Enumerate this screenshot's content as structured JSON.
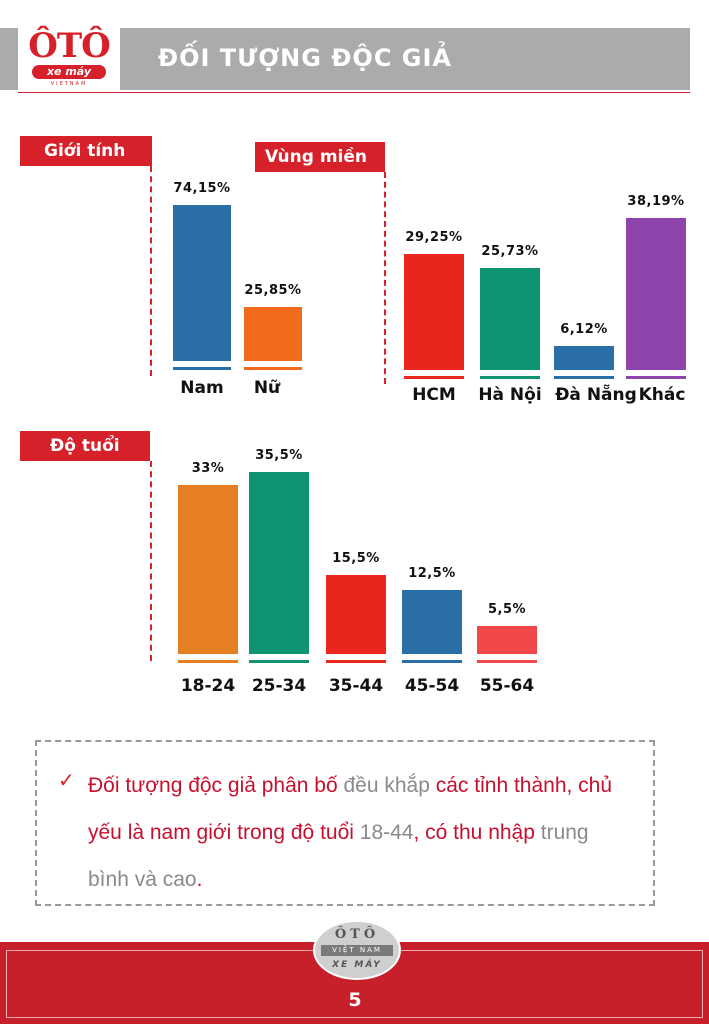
{
  "header": {
    "logo": {
      "brand": "ÔTÔ",
      "sub": "xe máy",
      "country": "VIETNAM"
    },
    "title": "ĐỐI TƯỢNG ĐỘC GIẢ"
  },
  "sections": {
    "gender": "Giới tính",
    "region": "Vùng miền",
    "age": "Độ tuổi"
  },
  "chart_data": [
    {
      "type": "bar",
      "title": "Giới tính",
      "categories": [
        "Nam",
        "Nữ"
      ],
      "values": [
        74.15,
        25.85
      ],
      "value_labels": [
        "74,15%",
        "25,85%"
      ],
      "colors": [
        "#2a6fa8",
        "#f26b1d"
      ]
    },
    {
      "type": "bar",
      "title": "Vùng miền",
      "categories": [
        "HCM",
        "Hà Nội",
        "Đà Nẵng",
        "Khác"
      ],
      "values": [
        29.25,
        25.73,
        6.12,
        38.19
      ],
      "value_labels": [
        "29,25%",
        "25,73%",
        "6,12%",
        "38,19%"
      ],
      "colors": [
        "#e8261c",
        "#0f9473",
        "#2a6fa8",
        "#8e44ad"
      ]
    },
    {
      "type": "bar",
      "title": "Độ tuổi",
      "categories": [
        "18-24",
        "25-34",
        "35-44",
        "45-54",
        "55-64"
      ],
      "values": [
        33,
        35.5,
        15.5,
        12.5,
        5.5
      ],
      "value_labels": [
        "33%",
        "35,5%",
        "15,5%",
        "12,5%",
        "5,5%"
      ],
      "colors": [
        "#e67e22",
        "#0f9473",
        "#e8261c",
        "#2a6fa8",
        "#f04848"
      ]
    }
  ],
  "note": {
    "check": "✓",
    "parts": [
      {
        "text": "Đối tượng độc giả phân bố ",
        "style": "red"
      },
      {
        "text": "đều khắp",
        "style": "grey"
      },
      {
        "text": " các tỉnh thành, chủ yếu là nam giới trong độ tuổi ",
        "style": "red"
      },
      {
        "text": "18-44",
        "style": "grey"
      },
      {
        "text": ", có thu nhập ",
        "style": "red"
      },
      {
        "text": "trung bình và cao",
        "style": "grey"
      },
      {
        "text": ".",
        "style": "red"
      }
    ]
  },
  "footer": {
    "badge_top": "ÔTÔ",
    "badge_mid": "VIỆT NAM",
    "badge_bot": "XE MÁY",
    "page": "5"
  }
}
